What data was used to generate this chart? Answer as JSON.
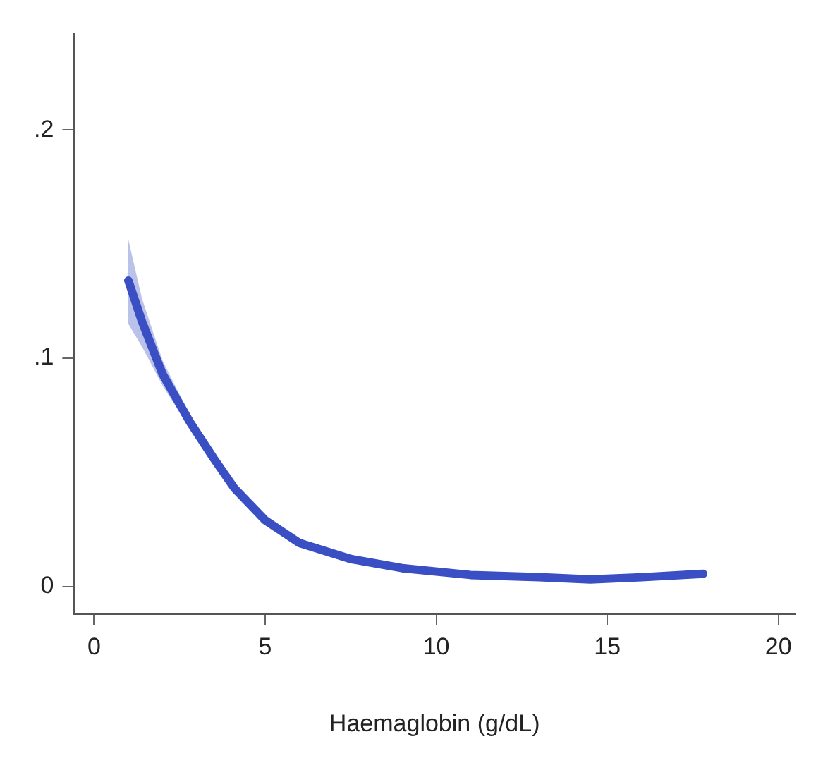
{
  "chart_data": {
    "type": "line",
    "xlabel": "Haemaglobin (g/dL)",
    "x": [
      1,
      1.4,
      2,
      2.8,
      3.5,
      4.1,
      5,
      6,
      7.5,
      9,
      11,
      13,
      14.5,
      16,
      17.8
    ],
    "series": [
      {
        "color": "#3a4fc4",
        "values": [
          0.134,
          0.116,
          0.093,
          0.072,
          0.056,
          0.043,
          0.029,
          0.019,
          0.012,
          0.008,
          0.005,
          0.004,
          0.003,
          0.004,
          0.0055
        ],
        "lower": [
          0.115,
          0.105,
          0.088,
          0.069,
          0.054,
          0.042,
          0.028,
          0.018,
          0.011,
          0.007,
          0.004,
          0.003,
          0.002,
          0.003,
          0.004
        ],
        "upper": [
          0.152,
          0.126,
          0.099,
          0.075,
          0.058,
          0.044,
          0.03,
          0.02,
          0.013,
          0.009,
          0.006,
          0.005,
          0.004,
          0.005,
          0.007
        ]
      }
    ],
    "xlim": [
      -0.6,
      20.5
    ],
    "xticks": [
      0,
      5,
      10,
      15,
      20
    ],
    "ylim": [
      -0.012,
      0.242
    ],
    "yticks": [
      0,
      {
        "value": 0.1,
        "label": ".1"
      },
      {
        "value": 0.2,
        "label": ".2"
      }
    ],
    "grid": false,
    "legend": false,
    "marker": "none",
    "line_style": "solid"
  }
}
